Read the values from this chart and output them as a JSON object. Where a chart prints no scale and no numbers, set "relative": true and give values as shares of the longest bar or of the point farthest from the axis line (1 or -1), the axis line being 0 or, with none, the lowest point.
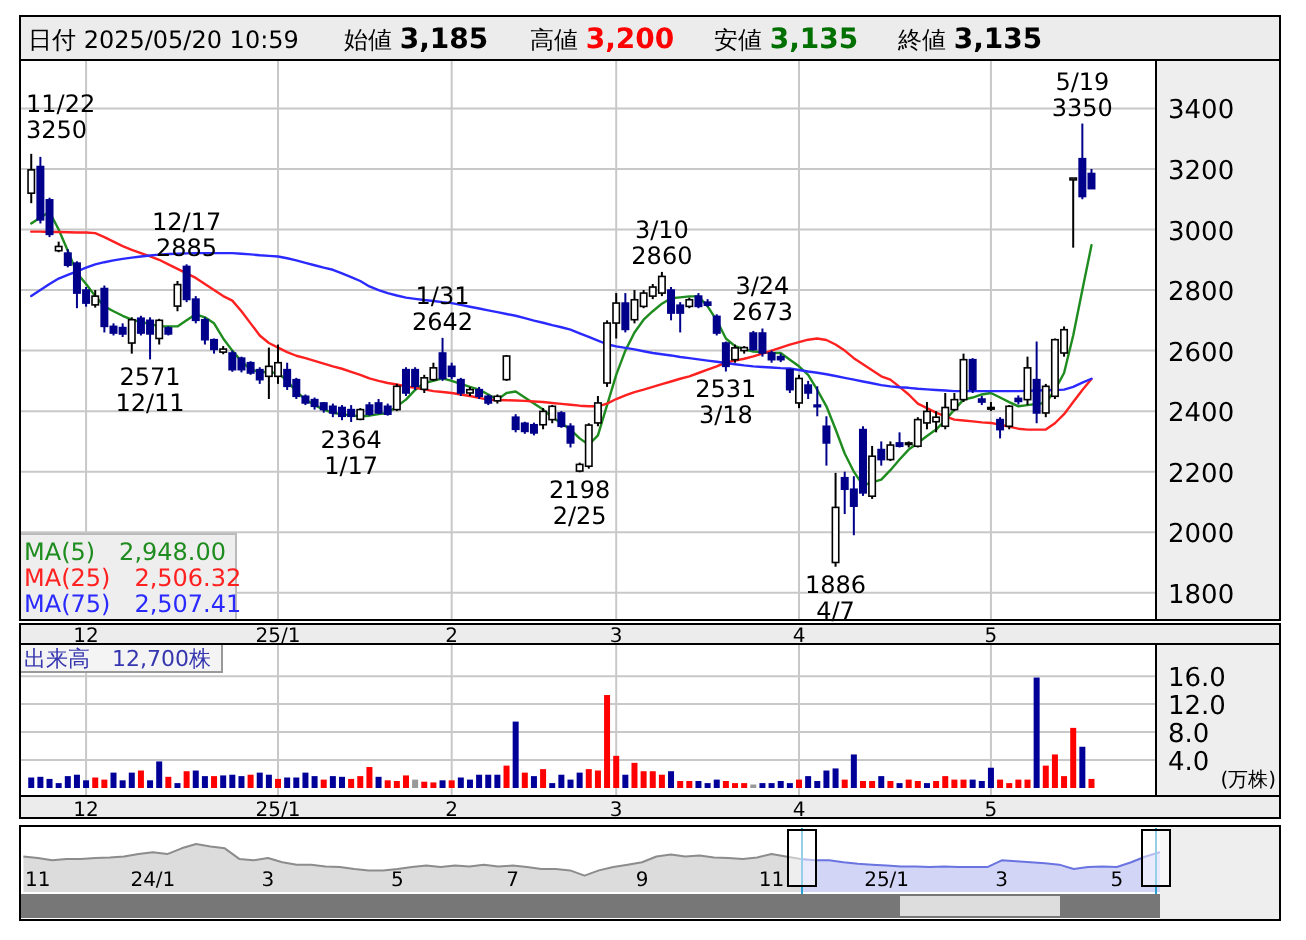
{
  "chart_data": [
    {
      "type": "other",
      "annotations": [
        "日付 2025/05/20 10:59",
        "始値 3,185",
        "高値 3,200",
        "安値 3,135",
        "終値 3,135"
      ],
      "colors": [
        "#000000",
        "#000000",
        "#ff0000",
        "#007000",
        "#000000"
      ]
    },
    {
      "type": "candlestick",
      "ylim": [
        1710,
        3560
      ],
      "yticks": [
        1800,
        2000,
        2200,
        2400,
        2600,
        2800,
        3000,
        3200,
        3400
      ],
      "grid": true,
      "legend": "bottom left",
      "categories": [
        null,
        null,
        null,
        null,
        null,
        null,
        "12",
        null,
        null,
        null,
        null,
        null,
        null,
        null,
        null,
        null,
        null,
        null,
        null,
        null,
        null,
        null,
        null,
        null,
        null,
        null,
        null,
        "25/1",
        null,
        null,
        null,
        null,
        null,
        null,
        null,
        null,
        null,
        null,
        null,
        null,
        null,
        null,
        null,
        null,
        null,
        null,
        "2",
        null,
        null,
        null,
        null,
        null,
        null,
        null,
        null,
        null,
        null,
        null,
        null,
        null,
        null,
        null,
        null,
        null,
        "3",
        null,
        null,
        null,
        null,
        null,
        null,
        null,
        null,
        null,
        null,
        null,
        null,
        null,
        null,
        null,
        null,
        null,
        null,
        null,
        "4",
        null,
        null,
        null,
        null,
        null,
        null,
        null,
        null,
        null,
        null,
        null,
        null,
        null,
        null,
        null,
        null,
        null,
        null,
        null,
        null,
        "5",
        null,
        null,
        null,
        null,
        null,
        null,
        null,
        null,
        null,
        null,
        null
      ],
      "ohlc": [
        [
          3120,
          3250,
          3087,
          3197
        ],
        [
          3208,
          3240,
          3020,
          3032
        ],
        [
          3098,
          3105,
          2975,
          2984
        ],
        [
          2930,
          2960,
          2925,
          2944
        ],
        [
          2922,
          2935,
          2875,
          2882
        ],
        [
          2889,
          2895,
          2740,
          2790
        ],
        [
          2800,
          2810,
          2745,
          2757
        ],
        [
          2751,
          2800,
          2742,
          2780
        ],
        [
          2805,
          2815,
          2660,
          2680
        ],
        [
          2680,
          2690,
          2650,
          2658
        ],
        [
          2676,
          2690,
          2645,
          2655
        ],
        [
          2625,
          2710,
          2590,
          2702
        ],
        [
          2707,
          2715,
          2650,
          2658
        ],
        [
          2700,
          2710,
          2571,
          2655
        ],
        [
          2640,
          2705,
          2620,
          2700
        ],
        [
          2675,
          2680,
          2650,
          2655
        ],
        [
          2747,
          2830,
          2730,
          2818
        ],
        [
          2878,
          2885,
          2760,
          2769
        ],
        [
          2770,
          2780,
          2690,
          2700
        ],
        [
          2702,
          2710,
          2620,
          2636
        ],
        [
          2636,
          2640,
          2590,
          2604
        ],
        [
          2595,
          2615,
          2588,
          2605
        ],
        [
          2592,
          2600,
          2530,
          2537
        ],
        [
          2575,
          2580,
          2528,
          2537
        ],
        [
          2560,
          2565,
          2520,
          2526
        ],
        [
          2537,
          2545,
          2490,
          2504
        ],
        [
          2515,
          2610,
          2440,
          2548
        ],
        [
          2515,
          2620,
          2490,
          2560
        ],
        [
          2537,
          2560,
          2470,
          2482
        ],
        [
          2504,
          2510,
          2440,
          2449
        ],
        [
          2449,
          2455,
          2420,
          2427
        ],
        [
          2438,
          2445,
          2405,
          2416
        ],
        [
          2427,
          2430,
          2395,
          2405
        ],
        [
          2416,
          2425,
          2380,
          2394
        ],
        [
          2412,
          2420,
          2370,
          2383
        ],
        [
          2405,
          2420,
          2364,
          2383
        ],
        [
          2373,
          2410,
          2370,
          2405
        ],
        [
          2420,
          2430,
          2385,
          2390
        ],
        [
          2427,
          2440,
          2390,
          2394
        ],
        [
          2416,
          2425,
          2385,
          2390
        ],
        [
          2405,
          2490,
          2400,
          2482
        ],
        [
          2537,
          2545,
          2450,
          2460
        ],
        [
          2537,
          2545,
          2470,
          2482
        ],
        [
          2472,
          2520,
          2460,
          2510
        ],
        [
          2504,
          2560,
          2500,
          2543
        ],
        [
          2592,
          2642,
          2500,
          2508
        ],
        [
          2548,
          2560,
          2505,
          2515
        ],
        [
          2504,
          2510,
          2450,
          2460
        ],
        [
          2460,
          2480,
          2450,
          2471
        ],
        [
          2471,
          2480,
          2440,
          2449
        ],
        [
          2449,
          2455,
          2420,
          2427
        ],
        [
          2434,
          2455,
          2425,
          2449
        ],
        [
          2504,
          2585,
          2500,
          2582
        ],
        [
          2380,
          2390,
          2330,
          2340
        ],
        [
          2360,
          2365,
          2325,
          2333
        ],
        [
          2355,
          2362,
          2320,
          2328
        ],
        [
          2355,
          2410,
          2340,
          2399
        ],
        [
          2372,
          2420,
          2360,
          2416
        ],
        [
          2394,
          2400,
          2345,
          2350
        ],
        [
          2350,
          2360,
          2280,
          2295
        ],
        [
          2202,
          2230,
          2198,
          2224
        ],
        [
          2218,
          2360,
          2210,
          2354
        ],
        [
          2361,
          2450,
          2350,
          2427
        ],
        [
          2493,
          2700,
          2480,
          2691
        ],
        [
          2691,
          2790,
          2640,
          2757
        ],
        [
          2757,
          2790,
          2660,
          2670
        ],
        [
          2702,
          2800,
          2690,
          2768
        ],
        [
          2746,
          2800,
          2740,
          2790
        ],
        [
          2780,
          2820,
          2770,
          2810
        ],
        [
          2790,
          2860,
          2780,
          2845
        ],
        [
          2800,
          2810,
          2700,
          2724
        ],
        [
          2750,
          2760,
          2660,
          2724
        ],
        [
          2746,
          2775,
          2740,
          2768
        ],
        [
          2780,
          2790,
          2740,
          2746
        ],
        [
          2760,
          2770,
          2745,
          2750
        ],
        [
          2713,
          2720,
          2650,
          2658
        ],
        [
          2625,
          2630,
          2531,
          2548
        ],
        [
          2570,
          2620,
          2560,
          2609
        ],
        [
          2600,
          2615,
          2590,
          2610
        ],
        [
          2658,
          2665,
          2600,
          2603
        ],
        [
          2658,
          2673,
          2580,
          2592
        ],
        [
          2592,
          2600,
          2560,
          2570
        ],
        [
          2580,
          2590,
          2562,
          2570
        ],
        [
          2537,
          2540,
          2460,
          2471
        ],
        [
          2427,
          2520,
          2410,
          2508
        ],
        [
          2486,
          2500,
          2440,
          2460
        ],
        [
          2420,
          2482,
          2383,
          2416
        ],
        [
          2350,
          2383,
          2220,
          2295
        ],
        [
          1900,
          2196,
          1886,
          2082
        ],
        [
          2180,
          2200,
          2060,
          2142
        ],
        [
          2142,
          2185,
          1990,
          2086
        ],
        [
          2339,
          2350,
          2120,
          2130
        ],
        [
          2119,
          2285,
          2110,
          2251
        ],
        [
          2273,
          2300,
          2220,
          2240
        ],
        [
          2240,
          2300,
          2235,
          2288
        ],
        [
          2295,
          2330,
          2280,
          2284
        ],
        [
          2290,
          2300,
          2280,
          2295
        ],
        [
          2284,
          2380,
          2280,
          2372
        ],
        [
          2361,
          2430,
          2340,
          2399
        ],
        [
          2365,
          2400,
          2330,
          2380
        ],
        [
          2350,
          2460,
          2340,
          2412
        ],
        [
          2405,
          2460,
          2400,
          2438
        ],
        [
          2438,
          2590,
          2430,
          2570
        ],
        [
          2570,
          2575,
          2460,
          2471
        ],
        [
          2440,
          2450,
          2420,
          2430
        ],
        [
          2412,
          2430,
          2400,
          2412
        ],
        [
          2372,
          2380,
          2310,
          2339
        ],
        [
          2350,
          2420,
          2340,
          2416
        ],
        [
          2442,
          2452,
          2422,
          2432
        ],
        [
          2438,
          2580,
          2420,
          2543
        ],
        [
          2504,
          2630,
          2360,
          2394
        ],
        [
          2394,
          2490,
          2380,
          2482
        ],
        [
          2449,
          2640,
          2440,
          2636
        ],
        [
          2592,
          2680,
          2580,
          2669
        ],
        [
          3164,
          3170,
          2940,
          3170
        ],
        [
          3234,
          3350,
          3100,
          3109
        ],
        [
          3185,
          3200,
          3135,
          3135
        ]
      ],
      "series": [
        {
          "type": "line",
          "name": "MA(5)　2,948.00",
          "color": "#1e8c1e",
          "values": [
            3020,
            3040,
            3058,
            3000,
            2930,
            2856,
            2820,
            2780,
            2746,
            2730,
            2715,
            2702,
            2695,
            2688,
            2680,
            2680,
            2680,
            2700,
            2720,
            2710,
            2690,
            2640,
            2600,
            2565,
            2537,
            2530,
            2528,
            2526,
            2500,
            2465,
            2438,
            2420,
            2405,
            2394,
            2390,
            2386,
            2383,
            2385,
            2390,
            2394,
            2416,
            2438,
            2470,
            2493,
            2500,
            2508,
            2500,
            2490,
            2480,
            2471,
            2455,
            2438,
            2460,
            2465,
            2445,
            2425,
            2405,
            2380,
            2360,
            2339,
            2310,
            2289,
            2320,
            2420,
            2520,
            2600,
            2660,
            2702,
            2730,
            2755,
            2773,
            2776,
            2779,
            2779,
            2746,
            2700,
            2640,
            2615,
            2605,
            2597,
            2595,
            2593,
            2592,
            2570,
            2548,
            2520,
            2470,
            2416,
            2340,
            2260,
            2200,
            2155,
            2165,
            2174,
            2205,
            2240,
            2273,
            2295,
            2318,
            2339,
            2370,
            2405,
            2438,
            2445,
            2455,
            2460,
            2445,
            2430,
            2416,
            2420,
            2424,
            2427,
            2470,
            2526,
            2650,
            2800,
            2948
          ]
        },
        {
          "type": "line",
          "name": "MA(25)　2,506.32",
          "color": "#ff2020",
          "values": [
            2993,
            2993,
            2992,
            2992,
            2991,
            2990,
            2990,
            2988,
            2975,
            2960,
            2945,
            2933,
            2922,
            2911,
            2900,
            2885,
            2870,
            2855,
            2840,
            2820,
            2800,
            2780,
            2765,
            2730,
            2690,
            2650,
            2625,
            2610,
            2595,
            2583,
            2575,
            2566,
            2557,
            2548,
            2540,
            2530,
            2520,
            2508,
            2500,
            2493,
            2488,
            2482,
            2477,
            2472,
            2466,
            2463,
            2460,
            2455,
            2450,
            2444,
            2438,
            2437,
            2436,
            2435,
            2434,
            2432,
            2430,
            2427,
            2424,
            2421,
            2418,
            2416,
            2416,
            2425,
            2440,
            2452,
            2463,
            2471,
            2480,
            2489,
            2498,
            2507,
            2515,
            2526,
            2537,
            2548,
            2561,
            2567,
            2573,
            2581,
            2590,
            2600,
            2610,
            2620,
            2628,
            2636,
            2640,
            2635,
            2620,
            2600,
            2575,
            2555,
            2535,
            2515,
            2504,
            2480,
            2455,
            2425,
            2410,
            2395,
            2383,
            2372,
            2369,
            2366,
            2363,
            2361,
            2355,
            2349,
            2342,
            2339,
            2339,
            2339,
            2360,
            2390,
            2430,
            2470,
            2506
          ]
        },
        {
          "type": "line",
          "name": "MA(75)　2,507.41",
          "color": "#2a2aff",
          "values": [
            2780,
            2800,
            2820,
            2838,
            2850,
            2862,
            2874,
            2885,
            2892,
            2898,
            2903,
            2907,
            2911,
            2914,
            2917,
            2919,
            2920,
            2921,
            2922,
            2922,
            2922,
            2922,
            2922,
            2920,
            2918,
            2915,
            2913,
            2911,
            2905,
            2898,
            2890,
            2882,
            2874,
            2867,
            2855,
            2843,
            2830,
            2812,
            2800,
            2790,
            2782,
            2775,
            2771,
            2767,
            2764,
            2760,
            2757,
            2751,
            2745,
            2739,
            2733,
            2727,
            2721,
            2715,
            2707,
            2699,
            2692,
            2684,
            2677,
            2669,
            2657,
            2645,
            2633,
            2621,
            2614,
            2609,
            2604,
            2598,
            2592,
            2588,
            2584,
            2579,
            2575,
            2571,
            2567,
            2563,
            2559,
            2555,
            2551,
            2548,
            2546,
            2544,
            2542,
            2541,
            2536,
            2531,
            2527,
            2522,
            2516,
            2510,
            2504,
            2498,
            2492,
            2486,
            2482,
            2479,
            2477,
            2474,
            2472,
            2470,
            2468,
            2466,
            2466,
            2466,
            2466,
            2466,
            2466,
            2466,
            2466,
            2467,
            2468,
            2469,
            2470,
            2471,
            2480,
            2494,
            2507
          ]
        }
      ],
      "annotations": [
        "11/22\n3250",
        {
          "text": "12/17\n2885",
          "y": 2885
        },
        {
          "text": "2571\n12/11",
          "y": 2571
        },
        {
          "text": "1/31\n2642",
          "y": 2642
        },
        {
          "text": "2364\n1/17",
          "y": 2364
        },
        {
          "text": "2198\n2/25",
          "y": 2198
        },
        {
          "text": "3/10\n2860",
          "y": 2860
        },
        {
          "text": "3/24\n2673",
          "y": 2673
        },
        {
          "text": "2531\n3/18",
          "y": 2531
        },
        {
          "text": "1886\n4/7",
          "y": 1886
        },
        {
          "text": "5/19\n3350",
          "y": 3350
        }
      ]
    },
    {
      "type": "bar",
      "ylim": [
        0,
        20.6
      ],
      "yticks": [
        {
          "value": 4,
          "label": "4.0"
        },
        {
          "value": 8,
          "label": "8.0"
        },
        {
          "value": 12,
          "label": "12.0"
        },
        {
          "value": 16,
          "label": "16.0"
        }
      ],
      "grid": true,
      "ylabel": "(万株)",
      "annotations": [
        "出来高　12,700株"
      ],
      "categories": [
        null,
        null,
        null,
        null,
        null,
        null,
        "12",
        null,
        null,
        null,
        null,
        null,
        null,
        null,
        null,
        null,
        null,
        null,
        null,
        null,
        null,
        null,
        null,
        null,
        null,
        null,
        null,
        "25/1",
        null,
        null,
        null,
        null,
        null,
        null,
        null,
        null,
        null,
        null,
        null,
        null,
        null,
        null,
        null,
        null,
        null,
        null,
        "2",
        null,
        null,
        null,
        null,
        null,
        null,
        null,
        null,
        null,
        null,
        null,
        null,
        null,
        null,
        null,
        null,
        null,
        "3",
        null,
        null,
        null,
        null,
        null,
        null,
        null,
        null,
        null,
        null,
        null,
        null,
        null,
        null,
        null,
        null,
        null,
        null,
        null,
        "4",
        null,
        null,
        null,
        null,
        null,
        null,
        null,
        null,
        null,
        null,
        null,
        null,
        null,
        null,
        null,
        null,
        null,
        null,
        null,
        null,
        "5",
        null,
        null,
        null,
        null,
        null,
        null,
        null,
        null,
        null,
        null,
        null
      ],
      "values": [
        1.5,
        1.6,
        1.3,
        0.7,
        1.7,
        1.9,
        1.1,
        1.5,
        1.2,
        2.2,
        1.1,
        2.2,
        2.5,
        1.1,
        3.8,
        1.6,
        0.7,
        2.4,
        2.5,
        1.7,
        1.7,
        1.8,
        1.9,
        1.7,
        1.9,
        2.2,
        1.9,
        1.3,
        1.5,
        1.5,
        2.2,
        1.7,
        1.2,
        1.7,
        1.6,
        1.3,
        1.7,
        3.0,
        1.6,
        1.1,
        1.0,
        1.8,
        1.2,
        0.9,
        0.8,
        1.1,
        1.1,
        1.5,
        1.2,
        1.9,
        1.9,
        1.9,
        3.2,
        9.5,
        2.2,
        1.7,
        2.7,
        0.7,
        1.9,
        1.2,
        2.2,
        2.7,
        2.5,
        13.3,
        4.6,
        1.9,
        3.6,
        2.4,
        2.4,
        1.9,
        2.4,
        1.0,
        1.0,
        1.0,
        0.7,
        1.2,
        1.0,
        0.7,
        0.7,
        0.5,
        0.7,
        0.7,
        1.0,
        0.7,
        1.2,
        1.7,
        1.0,
        2.5,
        2.8,
        1.2,
        4.8,
        1.0,
        1.0,
        1.7,
        1.0,
        0.7,
        1.2,
        1.0,
        0.7,
        1.0,
        1.7,
        1.2,
        1.2,
        1.2,
        1.0,
        2.9,
        1.2,
        0.7,
        1.2,
        1.2,
        15.8,
        3.2,
        4.8,
        1.7,
        8.6,
        5.9,
        1.3
      ],
      "colors": [
        "#000099",
        "#000099",
        "#000099",
        "#000099",
        "#000099",
        "#000099",
        "#000099",
        "#ff0000",
        "#ff0000",
        "#000099",
        "#000099",
        "#000099",
        "#ff0000",
        "#000099",
        "#000099",
        "#ff0000",
        "#000099",
        "#ff0000",
        "#000099",
        "#000099",
        "#ff0000",
        "#000099",
        "#000099",
        "#000099",
        "#ff0000",
        "#000099",
        "#000099",
        "#ff0000",
        "#000099",
        "#000099",
        "#000099",
        "#000099",
        "#ff0000",
        "#000099",
        "#000099",
        "#ff0000",
        "#ff0000",
        "#ff0000",
        "#000099",
        "#ff0000",
        "#ff0000",
        "#ff0000",
        "#999999",
        "#ff0000",
        "#ff0000",
        "#000099",
        "#ff0000",
        "#000099",
        "#000099",
        "#000099",
        "#000099",
        "#000099",
        "#ff0000",
        "#000099",
        "#ff0000",
        "#000099",
        "#ff0000",
        "#000099",
        "#000099",
        "#000099",
        "#000099",
        "#ff0000",
        "#ff0000",
        "#ff0000",
        "#ff0000",
        "#000099",
        "#ff0000",
        "#ff0000",
        "#ff0000",
        "#ff0000",
        "#000099",
        "#ff0000",
        "#ff0000",
        "#000099",
        "#000099",
        "#000099",
        "#ff0000",
        "#ff0000",
        "#ff0000",
        "#999999",
        "#000099",
        "#000099",
        "#000099",
        "#000099",
        "#ff0000",
        "#000099",
        "#000099",
        "#000099",
        "#000099",
        "#ff0000",
        "#000099",
        "#ff0000",
        "#ff0000",
        "#000099",
        "#ff0000",
        "#000099",
        "#ff0000",
        "#ff0000",
        "#000099",
        "#ff0000",
        "#ff0000",
        "#ff0000",
        "#ff0000",
        "#000099",
        "#000099",
        "#000099",
        "#ff0000",
        "#ff0000",
        "#ff0000",
        "#ff0000",
        "#000099",
        "#ff0000",
        "#ff0000",
        "#ff0000",
        "#ff0000",
        "#000099",
        "#ff0000"
      ]
    },
    {
      "type": "area",
      "relative": true,
      "categories": [
        null,
        "11",
        null,
        null,
        null,
        null,
        null,
        null,
        null,
        "24/1",
        null,
        null,
        null,
        null,
        null,
        null,
        null,
        "3",
        null,
        null,
        null,
        null,
        null,
        null,
        null,
        null,
        "5",
        null,
        null,
        null,
        null,
        null,
        null,
        null,
        "7",
        null,
        null,
        null,
        null,
        null,
        null,
        null,
        null,
        "9",
        null,
        null,
        null,
        null,
        null,
        null,
        null,
        null,
        "11",
        null,
        null,
        null,
        null,
        null,
        null,
        null,
        "25/1",
        null,
        null,
        null,
        null,
        null,
        null,
        null,
        "3",
        null,
        null,
        null,
        null,
        null,
        null,
        null,
        "5",
        null,
        null,
        null
      ],
      "series": [
        {
          "color": "#8c8c8c",
          "values": [
            0.74,
            0.71,
            0.66,
            0.69,
            0.69,
            0.71,
            0.72,
            0.74,
            0.79,
            0.83,
            0.79,
            0.91,
            1,
            0.95,
            0.91,
            0.69,
            0.66,
            0.71,
            0.62,
            0.57,
            0.57,
            0.53,
            0.52,
            0.48,
            0.45,
            0.45,
            0.48,
            0.52,
            0.55,
            0.52,
            0.55,
            0.53,
            0.57,
            0.53,
            0.55,
            0.52,
            0.48,
            0.48,
            0.45,
            0.34,
            0.45,
            0.52,
            0.57,
            0.62,
            0.74,
            0.78,
            0.74,
            0.76,
            0.72,
            0.71,
            0.69,
            0.72,
            0.79,
            0.74,
            0.69,
            null,
            null,
            null,
            null,
            null,
            null,
            null,
            null,
            null,
            null,
            null,
            null,
            null,
            null,
            null,
            null,
            null,
            null,
            null,
            null,
            null,
            null,
            null,
            null,
            null
          ]
        },
        {
          "color": "#6a74e0",
          "values": [
            null,
            null,
            null,
            null,
            null,
            null,
            null,
            null,
            null,
            null,
            null,
            null,
            null,
            null,
            null,
            null,
            null,
            null,
            null,
            null,
            null,
            null,
            null,
            null,
            null,
            null,
            null,
            null,
            null,
            null,
            null,
            null,
            null,
            null,
            null,
            null,
            null,
            null,
            null,
            null,
            null,
            null,
            null,
            null,
            null,
            null,
            null,
            null,
            null,
            null,
            null,
            null,
            null,
            null,
            0.69,
            0.66,
            0.66,
            0.62,
            0.59,
            0.57,
            0.55,
            0.53,
            0.53,
            0.52,
            0.53,
            0.52,
            0.52,
            0.52,
            0.66,
            0.64,
            0.62,
            0.6,
            0.57,
            0.48,
            0.52,
            0.53,
            0.52,
            0.62,
            0.74,
            0.83
          ]
        }
      ]
    }
  ]
}
